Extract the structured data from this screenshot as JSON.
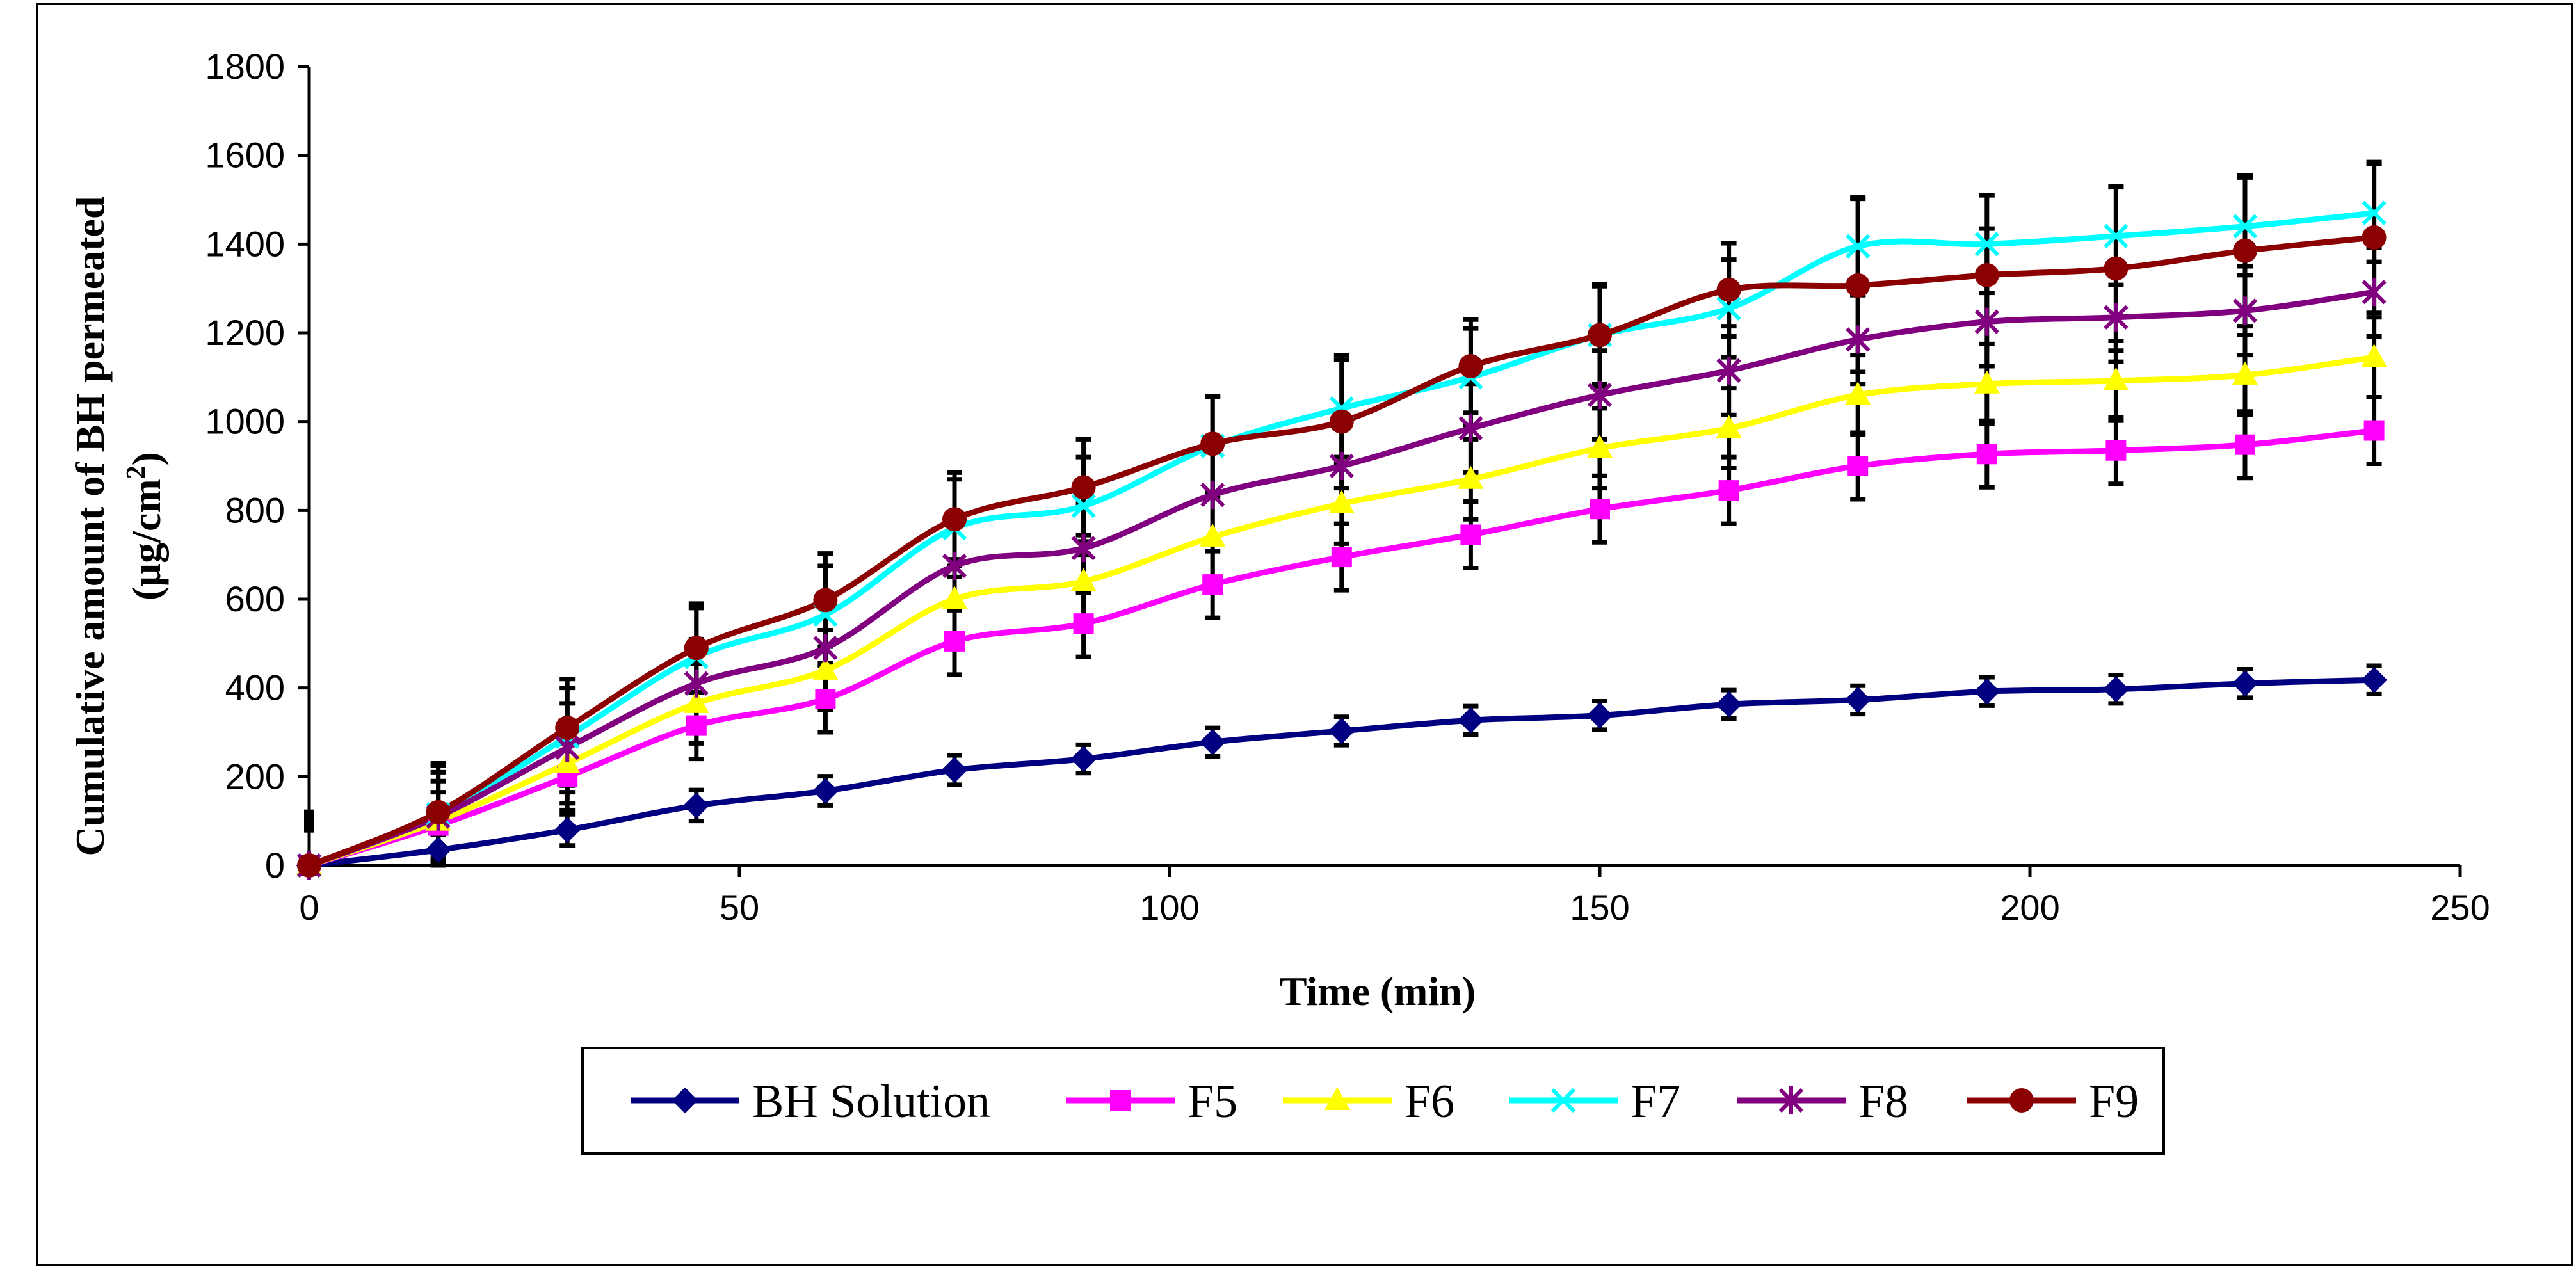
{
  "chart_data": {
    "type": "line",
    "title": "",
    "xlabel": "Time (min)",
    "ylabel_line1": "Cumulative amount of BH permeated",
    "ylabel_line2_prefix": "(µg/cm",
    "ylabel_line2_sup": "2",
    "ylabel_line2_suffix": ")",
    "xlim": [
      0,
      250
    ],
    "ylim": [
      0,
      1800
    ],
    "xticks": [
      0,
      50,
      100,
      150,
      200,
      250
    ],
    "yticks": [
      0,
      200,
      400,
      600,
      800,
      1000,
      1200,
      1400,
      1600,
      1800
    ],
    "grid": false,
    "legend_position": "bottom",
    "x": [
      0,
      15,
      30,
      45,
      60,
      75,
      90,
      105,
      120,
      135,
      150,
      165,
      180,
      195,
      210,
      225,
      240
    ],
    "series": [
      {
        "name": "BH Solution",
        "color": "#000080",
        "marker": "diamond",
        "values": [
          0,
          35,
          80,
          135,
          168,
          215,
          240,
          278,
          303,
          327,
          338,
          363,
          373,
          392,
          397,
          410,
          418
        ],
        "errors": [
          0,
          35,
          35,
          35,
          33,
          33,
          32,
          32,
          32,
          32,
          32,
          32,
          32,
          32,
          32,
          32,
          32
        ]
      },
      {
        "name": "F5",
        "color": "#FF00FF",
        "marker": "square",
        "values": [
          0,
          90,
          200,
          315,
          375,
          505,
          545,
          633,
          695,
          745,
          803,
          845,
          900,
          927,
          935,
          948,
          980
        ],
        "errors": [
          0,
          75,
          75,
          75,
          75,
          75,
          75,
          75,
          75,
          75,
          75,
          75,
          75,
          75,
          75,
          75,
          75
        ]
      },
      {
        "name": "F6",
        "color": "#FFFF00",
        "marker": "triangle",
        "values": [
          0,
          100,
          230,
          365,
          440,
          600,
          640,
          740,
          815,
          870,
          940,
          985,
          1060,
          1085,
          1092,
          1105,
          1145
        ],
        "errors": [
          0,
          90,
          90,
          90,
          90,
          90,
          90,
          90,
          90,
          90,
          90,
          90,
          90,
          90,
          90,
          90,
          90
        ]
      },
      {
        "name": "F7",
        "color": "#00FFFF",
        "marker": "x",
        "values": [
          0,
          115,
          290,
          470,
          565,
          760,
          810,
          945,
          1030,
          1100,
          1195,
          1255,
          1395,
          1400,
          1418,
          1440,
          1470
        ],
        "errors": [
          0,
          110,
          110,
          110,
          110,
          110,
          110,
          110,
          110,
          110,
          110,
          110,
          110,
          110,
          110,
          110,
          110
        ]
      },
      {
        "name": "F8",
        "color": "#800080",
        "marker": "star",
        "values": [
          0,
          110,
          265,
          410,
          490,
          675,
          715,
          835,
          900,
          985,
          1060,
          1115,
          1185,
          1225,
          1235,
          1250,
          1292
        ],
        "errors": [
          0,
          100,
          100,
          100,
          100,
          100,
          100,
          100,
          100,
          100,
          100,
          100,
          100,
          100,
          100,
          100,
          100
        ]
      },
      {
        "name": "F9",
        "color": "#8B0000",
        "marker": "circle",
        "values": [
          0,
          120,
          310,
          490,
          598,
          780,
          852,
          950,
          1000,
          1125,
          1195,
          1297,
          1307,
          1330,
          1345,
          1385,
          1415
        ],
        "errors": [
          0,
          110,
          110,
          100,
          105,
          105,
          108,
          108,
          150,
          105,
          115,
          105,
          195,
          105,
          185,
          170,
          170
        ]
      }
    ],
    "outlier_mark": {
      "x": 0,
      "y": 100,
      "color": "#000000"
    }
  }
}
